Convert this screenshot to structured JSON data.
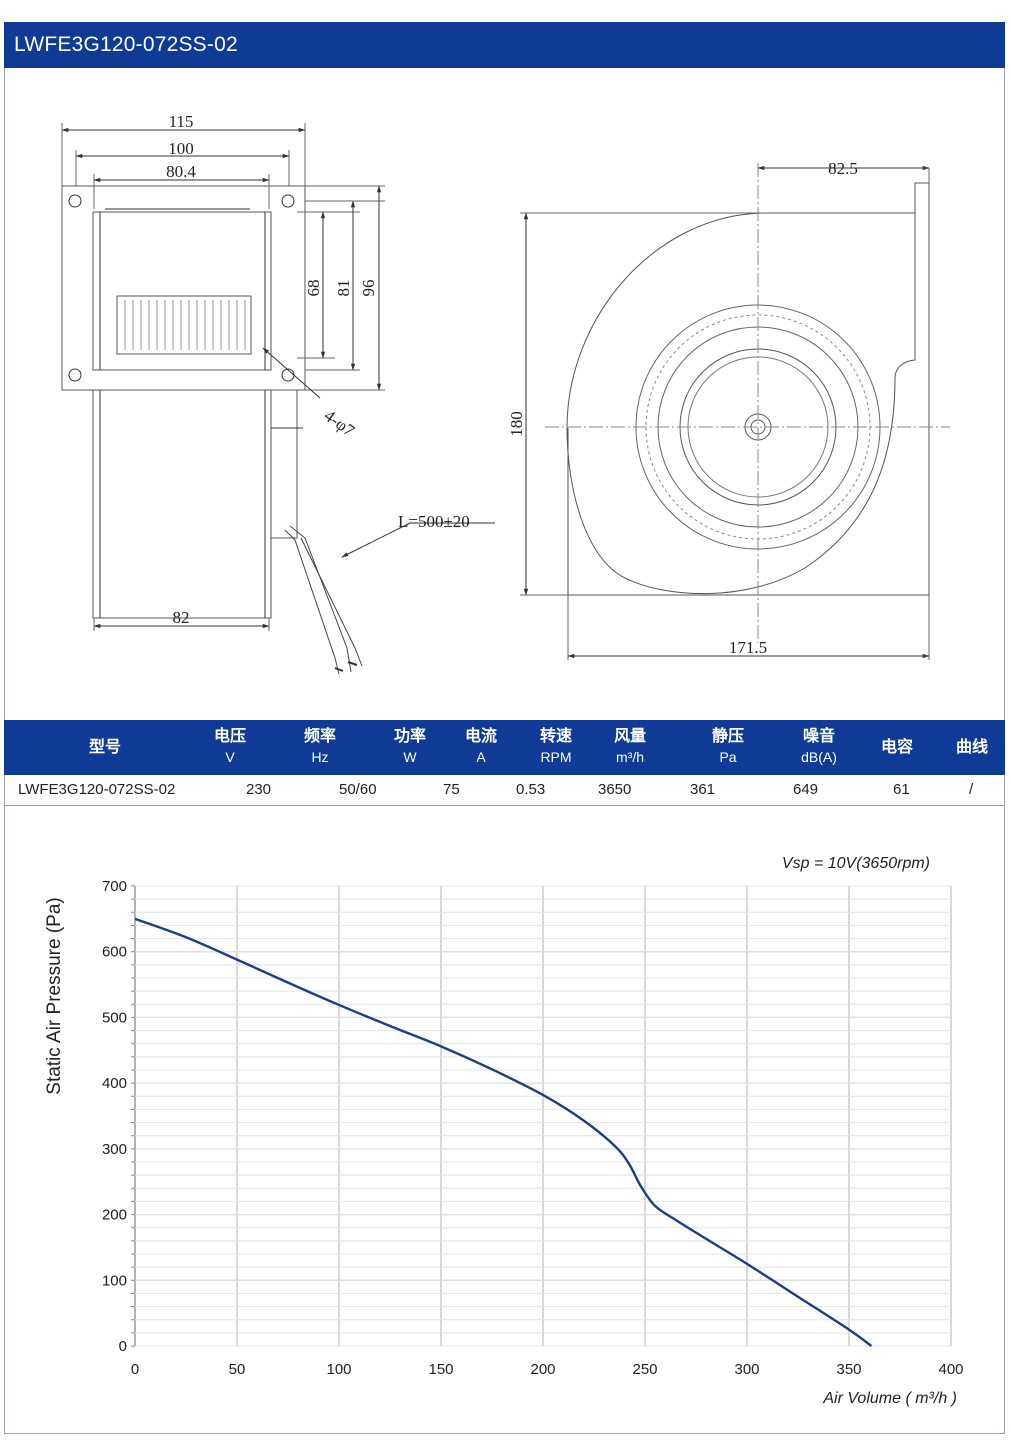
{
  "header": {
    "title": "LWFE3G120-072SS-02"
  },
  "drawing": {
    "dims": {
      "w115": "115",
      "w100": "100",
      "w80": "80.4",
      "h68": "68",
      "h81": "81",
      "h96": "96",
      "hole": "4-φ7",
      "cable": "L=500±20",
      "w82": "82",
      "w82_5": "82.5",
      "h180": "180",
      "w171_5": "171.5"
    }
  },
  "spec_table": {
    "headers": [
      {
        "label": "型号",
        "unit": ""
      },
      {
        "label": "电压",
        "unit": "V"
      },
      {
        "label": "频率",
        "unit": "Hz"
      },
      {
        "label": "功率",
        "unit": "W"
      },
      {
        "label": "电流",
        "unit": "A"
      },
      {
        "label": "转速",
        "unit": "RPM"
      },
      {
        "label": "风量",
        "unit": "m³/h"
      },
      {
        "label": "静压",
        "unit": "Pa"
      },
      {
        "label": "噪音",
        "unit": "dB(A)"
      },
      {
        "label": "电容",
        "unit": ""
      },
      {
        "label": "曲线",
        "unit": ""
      }
    ],
    "row": [
      "LWFE3G120-072SS-02",
      "230",
      "50/60",
      "75",
      "0.53",
      "3650",
      "361",
      "649",
      "61",
      "/"
    ]
  },
  "chart_data": {
    "type": "line",
    "annotation": "Vsp = 10V(3650rpm)",
    "xlabel": "Air Volume ( m³/h )",
    "ylabel": "Static Air Pressure  (Pa)",
    "xlim": [
      0,
      400
    ],
    "ylim": [
      0,
      700
    ],
    "xticks": [
      0,
      50,
      100,
      150,
      200,
      250,
      300,
      350,
      400
    ],
    "yticks": [
      0,
      100,
      200,
      300,
      400,
      500,
      600,
      700
    ],
    "grid": true,
    "line_color": "#1a3f86",
    "series": [
      {
        "x": [
          0,
          25,
          50,
          75,
          100,
          125,
          150,
          175,
          200,
          220,
          235,
          242,
          248,
          255,
          265,
          280,
          300,
          325,
          350,
          361
        ],
        "values": [
          650,
          622,
          588,
          553,
          519,
          487,
          456,
          421,
          382,
          343,
          305,
          278,
          243,
          213,
          192,
          163,
          125,
          75,
          25,
          0
        ]
      }
    ]
  }
}
